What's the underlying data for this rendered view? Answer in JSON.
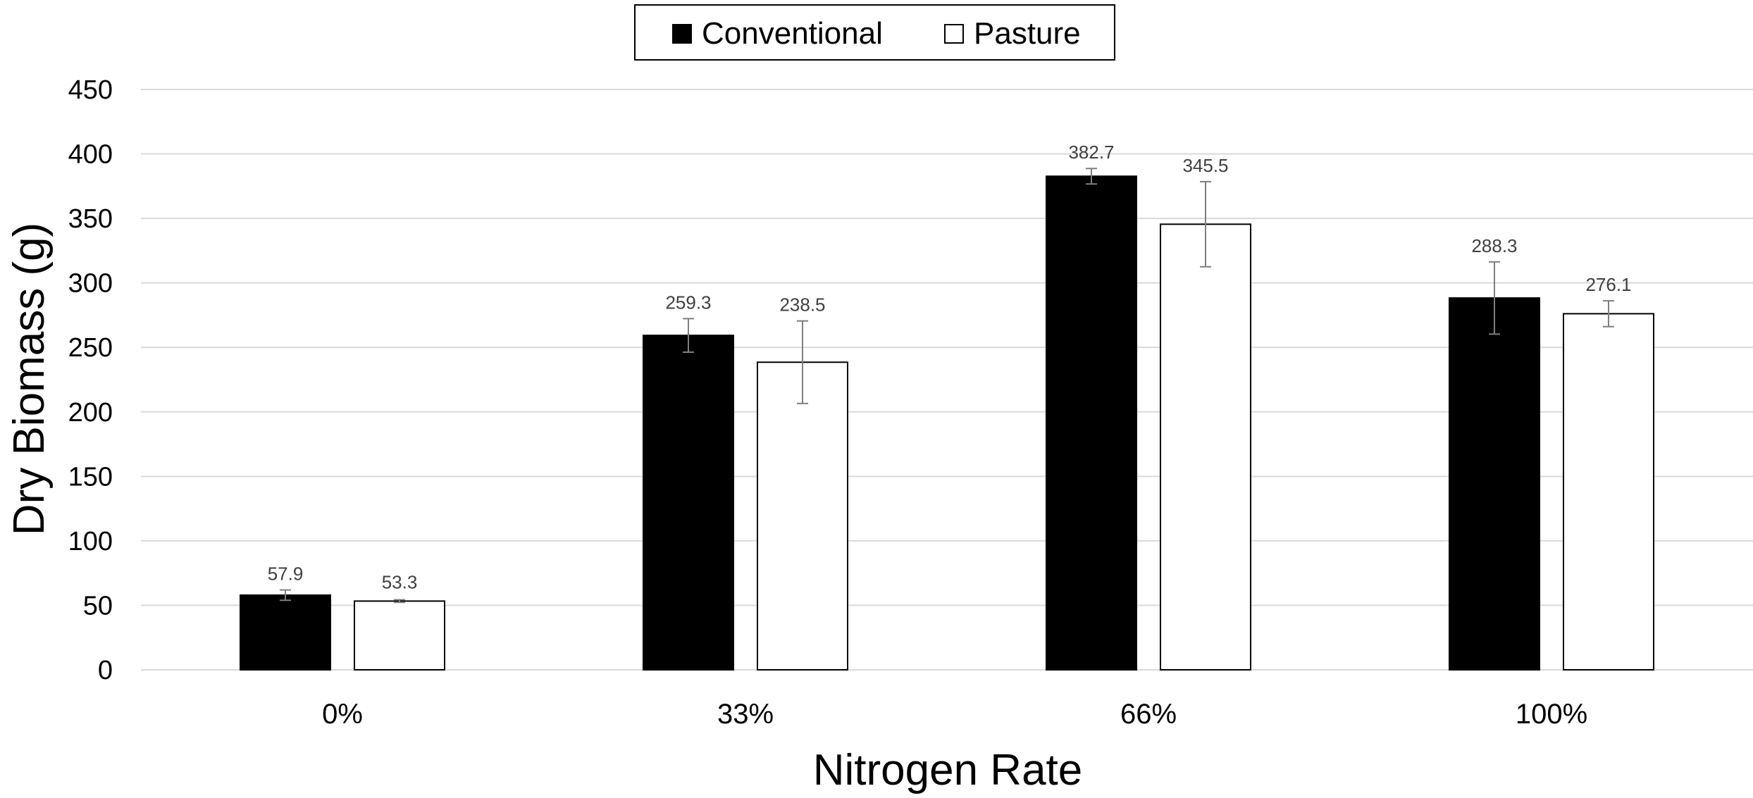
{
  "chart_data": {
    "type": "bar",
    "title": "",
    "xlabel": "Nitrogen Rate",
    "ylabel": "Dry Biomass (g)",
    "ylim": [
      0,
      450
    ],
    "yticks": [
      "0",
      "50",
      "100",
      "150",
      "200",
      "250",
      "300",
      "350",
      "400",
      "450"
    ],
    "grid": "horizontal",
    "legend_position": "top-center",
    "categories": [
      "0%",
      "33%",
      "66%",
      "100%"
    ],
    "series": [
      {
        "name": "Conventional",
        "color": "#000000",
        "values": [
          57.9,
          259.3,
          382.7,
          288.3
        ],
        "labels": [
          "57.9",
          "259.3",
          "382.7",
          "288.3"
        ],
        "error": [
          4,
          13,
          6,
          28
        ]
      },
      {
        "name": "Pasture",
        "color": "#ffffff",
        "values": [
          53.3,
          238.5,
          345.5,
          276.1
        ],
        "labels": [
          "53.3",
          "238.5",
          "345.5",
          "276.1"
        ],
        "error": [
          1,
          32,
          33,
          10
        ]
      }
    ]
  }
}
